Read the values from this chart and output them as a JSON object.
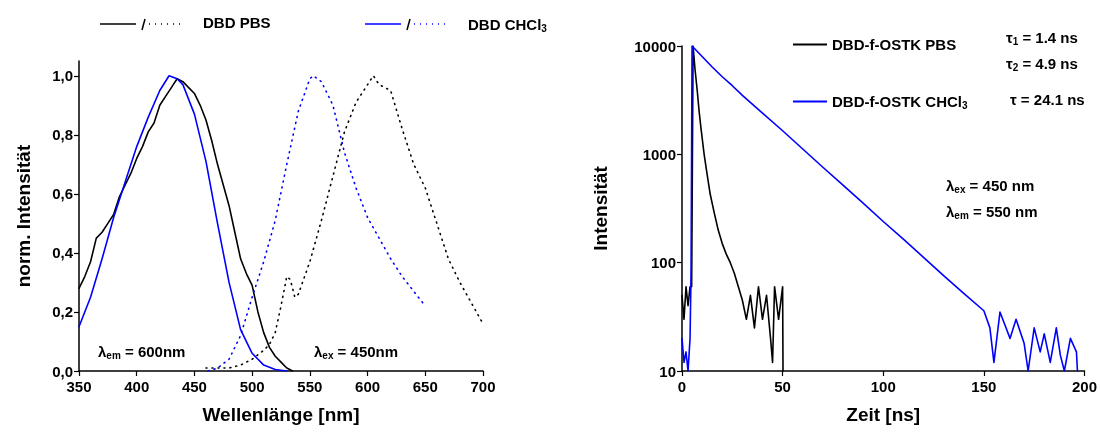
{
  "chart_data": [
    {
      "type": "line",
      "xlabel": "Wellenlänge [nm]",
      "ylabel": "norm. Intensität",
      "xlim": [
        350,
        700
      ],
      "xticks": [
        350,
        400,
        450,
        500,
        550,
        600,
        650,
        700
      ],
      "ylim": [
        0,
        1.05
      ],
      "yticks": [
        {
          "value": 0,
          "label": "0,0"
        },
        {
          "value": 0.2,
          "label": "0,2"
        },
        {
          "value": 0.4,
          "label": "0,4"
        },
        {
          "value": 0.6,
          "label": "0,6"
        },
        {
          "value": 0.8,
          "label": "0,8"
        },
        {
          "value": 1,
          "label": "1,0"
        }
      ],
      "legend": "top",
      "annotations": [
        "λ$_{em}$ = 600nm",
        "λ$_{ex}$ = 450nm"
      ],
      "series": [
        {
          "color": "#000000",
          "line_style": "solid",
          "x": [
            350,
            355,
            360,
            365,
            370,
            375,
            380,
            385,
            390,
            395,
            400,
            405,
            410,
            415,
            420,
            425,
            430,
            435,
            440,
            445,
            450,
            455,
            460,
            465,
            470,
            475,
            480,
            485,
            490,
            495,
            500,
            505,
            510,
            515,
            520,
            525,
            530,
            535
          ],
          "values": [
            0.28,
            0.32,
            0.37,
            0.45,
            0.47,
            0.5,
            0.53,
            0.59,
            0.63,
            0.67,
            0.72,
            0.76,
            0.81,
            0.84,
            0.9,
            0.93,
            0.96,
            0.99,
            0.98,
            0.96,
            0.94,
            0.9,
            0.85,
            0.78,
            0.7,
            0.63,
            0.56,
            0.47,
            0.38,
            0.33,
            0.29,
            0.2,
            0.13,
            0.08,
            0.05,
            0.03,
            0.01,
            0
          ]
        },
        {
          "name": "DBD PBS",
          "color": "#000000",
          "line_style": "dotted",
          "x": [
            460,
            470,
            480,
            490,
            500,
            510,
            515,
            520,
            525,
            530,
            533,
            537,
            540,
            550,
            560,
            570,
            580,
            590,
            600,
            605,
            610,
            620,
            630,
            640,
            650,
            660,
            670,
            680,
            690,
            700
          ],
          "values": [
            0.01,
            0.01,
            0.01,
            0.02,
            0.04,
            0.07,
            0.09,
            0.13,
            0.22,
            0.32,
            0.31,
            0.25,
            0.26,
            0.37,
            0.51,
            0.66,
            0.81,
            0.91,
            0.97,
            1.0,
            0.97,
            0.95,
            0.82,
            0.7,
            0.62,
            0.5,
            0.38,
            0.3,
            0.23,
            0.16
          ]
        },
        {
          "color": "#0000ff",
          "line_style": "solid",
          "x": [
            350,
            360,
            370,
            380,
            390,
            400,
            410,
            420,
            428,
            435,
            440,
            450,
            460,
            470,
            480,
            490,
            500,
            510,
            520,
            530
          ],
          "values": [
            0.15,
            0.25,
            0.38,
            0.52,
            0.64,
            0.76,
            0.86,
            0.95,
            1.0,
            0.99,
            0.97,
            0.87,
            0.71,
            0.5,
            0.3,
            0.14,
            0.06,
            0.02,
            0.005,
            0
          ]
        },
        {
          "name": "DBD CHCl$_{3}$",
          "color": "#0000ff",
          "line_style": "dotted",
          "x": [
            462,
            470,
            480,
            490,
            500,
            510,
            520,
            530,
            540,
            550,
            553,
            560,
            570,
            580,
            590,
            600,
            610,
            620,
            630,
            640,
            650
          ],
          "values": [
            0,
            0.01,
            0.04,
            0.12,
            0.25,
            0.37,
            0.51,
            0.7,
            0.88,
            0.99,
            1.0,
            0.98,
            0.9,
            0.74,
            0.62,
            0.52,
            0.45,
            0.38,
            0.32,
            0.27,
            0.22
          ]
        }
      ]
    },
    {
      "type": "line",
      "xlabel": "Zeit [ns]",
      "ylabel": "Intensität",
      "log": "y",
      "xlim": [
        0,
        200
      ],
      "xticks": [
        0,
        50,
        100,
        150,
        200
      ],
      "ylim": [
        10,
        10000
      ],
      "yticks": [
        10,
        100,
        1000,
        10000
      ],
      "legend": "top",
      "annotations": [
        "τ$_{1}$ = 1.4 ns",
        "τ$_{2}$ = 4.9 ns",
        "τ = 24.1 ns",
        "λ$_{ex}$ = 450 nm",
        "λ$_{em}$ = 550 nm"
      ],
      "series": [
        {
          "name": "DBD-f-OSTK PBS",
          "color": "#000000",
          "x": [
            0,
            1,
            2,
            3,
            4,
            4.8,
            5.5,
            6.5,
            7.5,
            8.5,
            9.5,
            11,
            12.5,
            14,
            16,
            18,
            20,
            22,
            24,
            26,
            28,
            30,
            32,
            34,
            36,
            38,
            40,
            42,
            44,
            45,
            46,
            48,
            50,
            50.2
          ],
          "values": [
            50,
            30,
            60,
            40,
            60,
            60,
            10000,
            6000,
            4000,
            2500,
            1700,
            1000,
            650,
            430,
            290,
            200,
            150,
            120,
            100,
            80,
            60,
            45,
            30,
            50,
            25,
            60,
            30,
            50,
            20,
            12,
            60,
            30,
            60,
            10
          ]
        },
        {
          "name": "DBD-f-OSTK CHCl$_{3}$",
          "color": "#0000ff",
          "x": [
            0,
            1,
            2,
            3,
            4,
            4.5,
            5,
            10,
            15,
            20,
            25,
            30,
            40,
            50,
            60,
            70,
            80,
            90,
            100,
            110,
            120,
            130,
            140,
            150,
            153,
            155,
            158,
            160,
            163,
            166,
            170,
            172,
            175,
            178,
            180,
            183,
            186,
            188,
            190,
            193,
            196,
            196.5
          ],
          "values": [
            20,
            12,
            15,
            10,
            20,
            80,
            10000,
            8000,
            6400,
            5200,
            4300,
            3500,
            2400,
            1650,
            1120,
            760,
            520,
            355,
            240,
            165,
            112,
            76,
            52,
            36,
            25,
            12,
            35,
            28,
            20,
            30,
            18,
            10,
            25,
            15,
            22,
            12,
            25,
            14,
            10,
            20,
            15,
            10
          ]
        }
      ]
    }
  ]
}
